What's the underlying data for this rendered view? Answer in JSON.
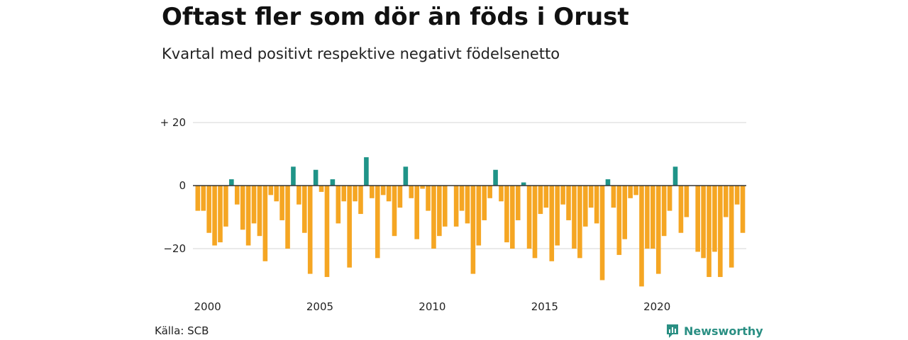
{
  "header": {
    "title": "Oftast fler som dör än föds i Orust",
    "subtitle": "Kvartal med positivt respektive negativt födelsenetto"
  },
  "footer": {
    "source": "Källa: SCB",
    "brand": "Newsworthy",
    "brand_icon": "newsworthy-logo-icon"
  },
  "colors": {
    "positive": "#1f9488",
    "negative": "#f5a623",
    "grid": "#dddddd",
    "brand": "#2a8f83"
  },
  "chart_data": {
    "type": "bar",
    "ylim": [
      -33,
      22
    ],
    "y_ticks": [
      {
        "value": 20,
        "label": "+ 20"
      },
      {
        "value": 0,
        "label": "0"
      },
      {
        "value": -20,
        "label": "−20"
      }
    ],
    "x_ticks": [
      {
        "year": 2000,
        "label": "2000"
      },
      {
        "year": 2005,
        "label": "2005"
      },
      {
        "year": 2010,
        "label": "2010"
      },
      {
        "year": 2015,
        "label": "2015"
      },
      {
        "year": 2020,
        "label": "2020"
      }
    ],
    "start_year": 2000,
    "start_quarter": 1,
    "values": [
      -8,
      -8,
      -15,
      -19,
      -18,
      -13,
      2,
      -6,
      -14,
      -19,
      -12,
      -16,
      -24,
      -3,
      -5,
      -11,
      -20,
      6,
      -6,
      -15,
      -28,
      5,
      -2,
      -29,
      2,
      -12,
      -5,
      -26,
      -5,
      -9,
      9,
      -4,
      -23,
      -3,
      -5,
      -16,
      -7,
      6,
      -4,
      -17,
      -1,
      -8,
      -20,
      -16,
      -13,
      0,
      -13,
      -8,
      -12,
      -28,
      -19,
      -11,
      -4,
      5,
      -5,
      -18,
      -20,
      -11,
      1,
      -20,
      -23,
      -9,
      -7,
      -24,
      -19,
      -6,
      -11,
      -20,
      -23,
      -13,
      -7,
      -12,
      -30,
      2,
      -7,
      -22,
      -17,
      -4,
      -3,
      -32,
      -20,
      -20,
      -28,
      -16,
      -8,
      6,
      -15,
      -10,
      0,
      -21,
      -23,
      -29,
      -21,
      -29,
      -10,
      -26,
      -6,
      -15
    ]
  }
}
